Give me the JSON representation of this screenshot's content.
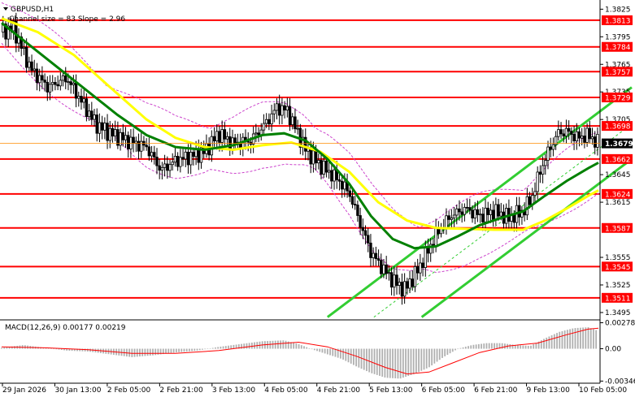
{
  "chart_data": {
    "type": "candlestick",
    "symbol": "GBPUSD,H1",
    "indicator_note": "Channel size = 83 Slope = 2.96",
    "price_ylim": [
      1.3487,
      1.3835
    ],
    "price_ticks": [
      {
        "value": 1.3825,
        "label": "1.3825"
      },
      {
        "value": 1.3795,
        "label": "1.3795"
      },
      {
        "value": 1.3765,
        "label": "1.3765"
      },
      {
        "value": 1.3735,
        "label": "1.3735"
      },
      {
        "value": 1.3705,
        "label": "1.3705"
      },
      {
        "value": 1.3645,
        "label": "1.3645"
      },
      {
        "value": 1.3615,
        "label": "1.3615"
      },
      {
        "value": 1.3555,
        "label": "1.3555"
      },
      {
        "value": 1.3525,
        "label": "1.3525"
      },
      {
        "value": 1.3495,
        "label": "1.3495"
      }
    ],
    "levels": [
      {
        "value": 1.3813,
        "label": "1.3813"
      },
      {
        "value": 1.3784,
        "label": "1.3784"
      },
      {
        "value": 1.3757,
        "label": "1.3757"
      },
      {
        "value": 1.3729,
        "label": "1.3729"
      },
      {
        "value": 1.3698,
        "label": "1.3698"
      },
      {
        "value": 1.3662,
        "label": "1.3662"
      },
      {
        "value": 1.3624,
        "label": "1.3624"
      },
      {
        "value": 1.3587,
        "label": "1.3587"
      },
      {
        "value": 1.3545,
        "label": "1.3545"
      },
      {
        "value": 1.3511,
        "label": "1.3511"
      }
    ],
    "current_price": {
      "value": 1.3679,
      "label": "1.3679"
    },
    "x_labels": [
      "29 Jan 2026",
      "30 Jan 13:00",
      "2 Feb 05:00",
      "2 Feb 21:00",
      "3 Feb 13:00",
      "4 Feb 05:00",
      "4 Feb 21:00",
      "5 Feb 13:00",
      "6 Feb 05:00",
      "6 Feb 21:00",
      "9 Feb 13:00",
      "10 Feb 05:00"
    ],
    "close_path": [
      [
        0,
        1.38
      ],
      [
        8,
        1.3805
      ],
      [
        20,
        1.376
      ],
      [
        32,
        1.374
      ],
      [
        45,
        1.375
      ],
      [
        55,
        1.3725
      ],
      [
        65,
        1.37
      ],
      [
        75,
        1.369
      ],
      [
        90,
        1.368
      ],
      [
        100,
        1.3675
      ],
      [
        110,
        1.365
      ],
      [
        120,
        1.366
      ],
      [
        130,
        1.3665
      ],
      [
        140,
        1.367
      ],
      [
        150,
        1.369
      ],
      [
        160,
        1.3678
      ],
      [
        172,
        1.3682
      ],
      [
        182,
        1.37
      ],
      [
        190,
        1.3718
      ],
      [
        197,
        1.3715
      ],
      [
        203,
        1.3695
      ],
      [
        210,
        1.3672
      ],
      [
        220,
        1.3655
      ],
      [
        232,
        1.364
      ],
      [
        240,
        1.3625
      ],
      [
        248,
        1.359
      ],
      [
        255,
        1.356
      ],
      [
        262,
        1.3545
      ],
      [
        270,
        1.353
      ],
      [
        278,
        1.352
      ],
      [
        285,
        1.3535
      ],
      [
        292,
        1.3555
      ],
      [
        300,
        1.358
      ],
      [
        310,
        1.36
      ],
      [
        320,
        1.3608
      ],
      [
        330,
        1.36
      ],
      [
        340,
        1.3605
      ],
      [
        350,
        1.3598
      ],
      [
        360,
        1.3605
      ],
      [
        366,
        1.362
      ],
      [
        372,
        1.365
      ],
      [
        378,
        1.3672
      ],
      [
        384,
        1.369
      ],
      [
        390,
        1.3692
      ],
      [
        398,
        1.3685
      ],
      [
        405,
        1.3688
      ],
      [
        412,
        1.3679
      ]
    ],
    "ma_green": [
      [
        0,
        1.381
      ],
      [
        20,
        1.3785
      ],
      [
        40,
        1.376
      ],
      [
        60,
        1.3735
      ],
      [
        80,
        1.371
      ],
      [
        100,
        1.3688
      ],
      [
        120,
        1.3675
      ],
      [
        140,
        1.3672
      ],
      [
        160,
        1.3677
      ],
      [
        180,
        1.3688
      ],
      [
        195,
        1.369
      ],
      [
        210,
        1.3682
      ],
      [
        225,
        1.3662
      ],
      [
        240,
        1.3635
      ],
      [
        255,
        1.36
      ],
      [
        270,
        1.3575
      ],
      [
        285,
        1.3565
      ],
      [
        300,
        1.3567
      ],
      [
        315,
        1.3578
      ],
      [
        330,
        1.359
      ],
      [
        345,
        1.3598
      ],
      [
        360,
        1.3605
      ],
      [
        375,
        1.3622
      ],
      [
        390,
        1.3638
      ],
      [
        405,
        1.3652
      ],
      [
        412,
        1.3658
      ]
    ],
    "ma_yellow": [
      [
        0,
        1.3815
      ],
      [
        25,
        1.38
      ],
      [
        50,
        1.3775
      ],
      [
        75,
        1.374
      ],
      [
        100,
        1.3705
      ],
      [
        120,
        1.3685
      ],
      [
        140,
        1.3675
      ],
      [
        160,
        1.3672
      ],
      [
        180,
        1.3677
      ],
      [
        200,
        1.368
      ],
      [
        220,
        1.367
      ],
      [
        240,
        1.3648
      ],
      [
        260,
        1.3615
      ],
      [
        280,
        1.3595
      ],
      [
        300,
        1.3587
      ],
      [
        320,
        1.3586
      ],
      [
        340,
        1.3585
      ],
      [
        360,
        1.3585
      ],
      [
        375,
        1.3595
      ],
      [
        390,
        1.3608
      ],
      [
        405,
        1.3622
      ],
      [
        412,
        1.3628
      ]
    ],
    "channel_upper": [
      [
        225,
        1.349
      ],
      [
        435,
        1.374
      ]
    ],
    "channel_lower": [
      [
        290,
        1.349
      ],
      [
        435,
        1.3662
      ]
    ],
    "channel_mid": [
      [
        257,
        1.349
      ],
      [
        435,
        1.37
      ]
    ],
    "macd": {
      "label": "MACD(12,26,9) 0.00177 0.00219",
      "ylim": [
        -0.0036,
        0.003
      ],
      "ticks": [
        {
          "value": 0.00278,
          "label": "0.00278"
        },
        {
          "value": 0.0,
          "label": "0.00"
        },
        {
          "value": -0.00346,
          "label": "-0.00346"
        }
      ],
      "histogram": [
        [
          0,
          0.0001
        ],
        [
          15,
          0.0004
        ],
        [
          30,
          0.0001
        ],
        [
          45,
          -0.0002
        ],
        [
          60,
          -0.0003
        ],
        [
          75,
          -0.0006
        ],
        [
          90,
          -0.0009
        ],
        [
          105,
          -0.0007
        ],
        [
          120,
          -0.0004
        ],
        [
          135,
          -0.0002
        ],
        [
          150,
          0.0002
        ],
        [
          165,
          0.0005
        ],
        [
          180,
          0.0008
        ],
        [
          195,
          0.0009
        ],
        [
          205,
          0.0005
        ],
        [
          215,
          -0.0001
        ],
        [
          225,
          -0.0006
        ],
        [
          235,
          -0.0011
        ],
        [
          245,
          -0.0019
        ],
        [
          255,
          -0.0026
        ],
        [
          265,
          -0.0031
        ],
        [
          275,
          -0.0032
        ],
        [
          285,
          -0.0027
        ],
        [
          295,
          -0.002
        ],
        [
          305,
          -0.0009
        ],
        [
          315,
          0.0
        ],
        [
          325,
          0.0004
        ],
        [
          335,
          0.0006
        ],
        [
          345,
          0.0006
        ],
        [
          355,
          0.0004
        ],
        [
          365,
          0.0003
        ],
        [
          375,
          0.0011
        ],
        [
          385,
          0.0018
        ],
        [
          395,
          0.0022
        ],
        [
          405,
          0.0023
        ],
        [
          412,
          0.0019
        ]
      ],
      "signal": [
        [
          0,
          0.0002
        ],
        [
          30,
          0.0001
        ],
        [
          60,
          -0.0001
        ],
        [
          90,
          -0.0005
        ],
        [
          120,
          -0.0005
        ],
        [
          150,
          -0.0002
        ],
        [
          180,
          0.0004
        ],
        [
          205,
          0.0007
        ],
        [
          225,
          0.0002
        ],
        [
          245,
          -0.0008
        ],
        [
          265,
          -0.002
        ],
        [
          280,
          -0.0027
        ],
        [
          295,
          -0.0025
        ],
        [
          310,
          -0.0016
        ],
        [
          330,
          -0.0004
        ],
        [
          350,
          0.0003
        ],
        [
          370,
          0.0006
        ],
        [
          390,
          0.0015
        ],
        [
          405,
          0.0021
        ],
        [
          412,
          0.0022
        ]
      ]
    }
  },
  "colors": {
    "bull": "#000000",
    "bear": "#000000",
    "level": "#ff0000",
    "label_bg": "#ff0000",
    "ma_green": "#008000",
    "ma_yellow": "#ffff00",
    "channel": "#32cd32",
    "bands": "#cc44cc",
    "macd_hist": "#b0b0b0",
    "macd_signal": "#ff0000",
    "current_bg": "#000000"
  }
}
